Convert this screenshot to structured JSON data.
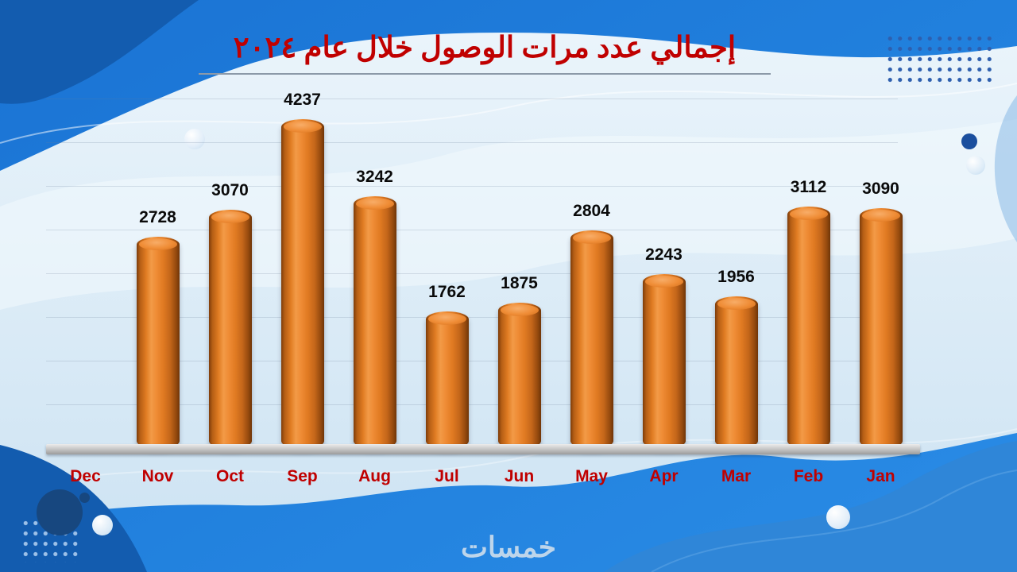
{
  "watermark": "خمسات",
  "chart_data": {
    "type": "bar",
    "title": "إجمالي عدد مرات الوصول خلال عام ٢٠٢٤",
    "categories": [
      "Dec",
      "Nov",
      "Oct",
      "Sep",
      "Aug",
      "Jul",
      "Jun",
      "May",
      "Apr",
      "Mar",
      "Feb",
      "Jan"
    ],
    "values": [
      null,
      2728,
      3070,
      4237,
      3242,
      1762,
      1875,
      2804,
      2243,
      1956,
      3112,
      3090
    ],
    "xlabel": "",
    "ylabel": "",
    "ylim": [
      0,
      4500
    ],
    "grid": true,
    "legend": false,
    "bar_color": "#E87D2B",
    "value_label_color": "#0A0A0A",
    "category_label_color": "#C00000",
    "title_color": "#C00000",
    "background_accent": "#1A73D4"
  }
}
